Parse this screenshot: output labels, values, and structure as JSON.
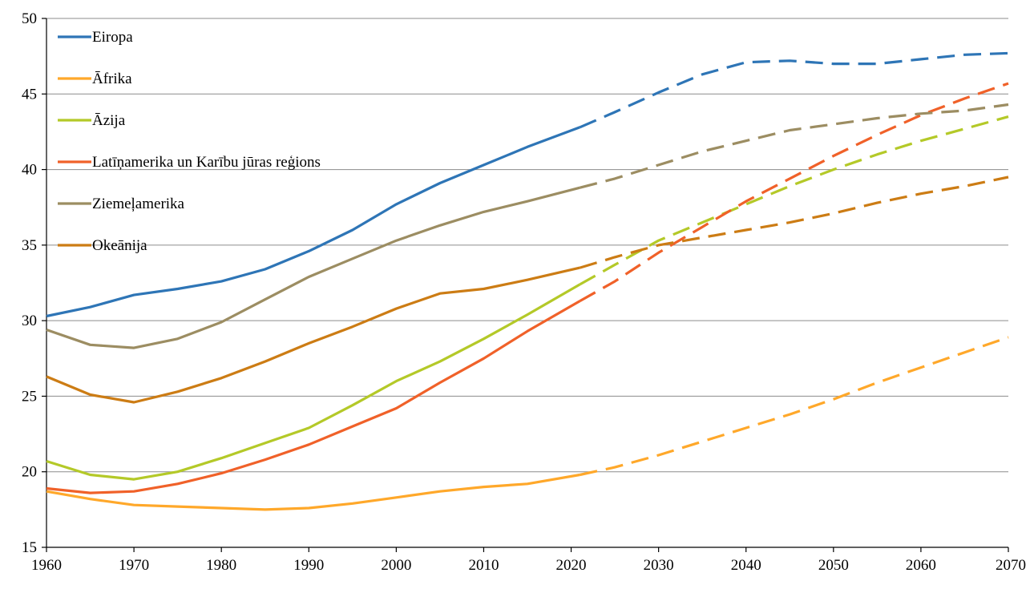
{
  "chart_data": {
    "type": "line",
    "title": "",
    "xlabel": "",
    "ylabel": "",
    "xlim": [
      1960,
      2070
    ],
    "ylim": [
      15,
      50
    ],
    "x_ticks": [
      1960,
      1970,
      1980,
      1990,
      2000,
      2010,
      2020,
      2030,
      2040,
      2050,
      2060,
      2070
    ],
    "y_ticks": [
      15,
      20,
      25,
      30,
      35,
      40,
      45,
      50
    ],
    "grid": true,
    "legend_placement": "top-left",
    "solid_until": 2021,
    "x": [
      1960,
      1965,
      1970,
      1975,
      1980,
      1985,
      1990,
      1995,
      2000,
      2005,
      2010,
      2015,
      2021,
      2025,
      2030,
      2035,
      2040,
      2045,
      2050,
      2055,
      2060,
      2065,
      2070
    ],
    "series": [
      {
        "name": "Eiropa",
        "color": "#2e75b6",
        "values": [
          30.3,
          30.9,
          31.7,
          32.1,
          32.6,
          33.4,
          34.6,
          36.0,
          37.7,
          39.1,
          40.3,
          41.5,
          42.8,
          43.8,
          45.1,
          46.3,
          47.1,
          47.2,
          47.0,
          47.0,
          47.3,
          47.6,
          47.7
        ]
      },
      {
        "name": "Āfrika",
        "color": "#ffa82a",
        "values": [
          18.7,
          18.2,
          17.8,
          17.7,
          17.6,
          17.5,
          17.6,
          17.9,
          18.3,
          18.7,
          19.0,
          19.2,
          19.8,
          20.3,
          21.1,
          22.0,
          22.9,
          23.8,
          24.8,
          25.9,
          26.9,
          27.9,
          28.9
        ]
      },
      {
        "name": "Āzija",
        "color": "#b4c928",
        "values": [
          20.7,
          19.8,
          19.5,
          20.0,
          20.9,
          21.9,
          22.9,
          24.4,
          26.0,
          27.3,
          28.8,
          30.4,
          32.4,
          33.7,
          35.3,
          36.5,
          37.7,
          38.9,
          40.0,
          41.0,
          41.9,
          42.7,
          43.5
        ]
      },
      {
        "name": "Latīņamerika un Karību jūras reģions",
        "color": "#f06129",
        "values": [
          18.9,
          18.6,
          18.7,
          19.2,
          19.9,
          20.8,
          21.8,
          23.0,
          24.2,
          25.9,
          27.5,
          29.3,
          31.3,
          32.6,
          34.5,
          36.2,
          37.9,
          39.4,
          40.9,
          42.3,
          43.6,
          44.7,
          45.7
        ]
      },
      {
        "name": "Ziemeļamerika",
        "color": "#9c8d62",
        "values": [
          29.4,
          28.4,
          28.2,
          28.8,
          29.9,
          31.4,
          32.9,
          34.1,
          35.3,
          36.3,
          37.2,
          37.9,
          38.8,
          39.4,
          40.3,
          41.2,
          41.9,
          42.6,
          43.0,
          43.4,
          43.7,
          43.9,
          44.3
        ]
      },
      {
        "name": "Okeānija",
        "color": "#cc7c14",
        "values": [
          26.3,
          25.1,
          24.6,
          25.3,
          26.2,
          27.3,
          28.5,
          29.6,
          30.8,
          31.8,
          32.1,
          32.7,
          33.5,
          34.2,
          35.0,
          35.5,
          36.0,
          36.5,
          37.1,
          37.8,
          38.4,
          38.9,
          39.5
        ]
      }
    ]
  }
}
